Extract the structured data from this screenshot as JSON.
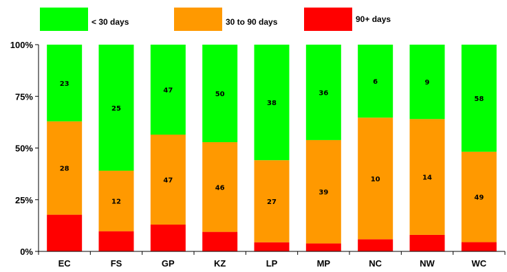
{
  "chart_data": {
    "type": "bar",
    "stacked": true,
    "normalized_100_percent": true,
    "categories": [
      "EC",
      "FS",
      "GP",
      "KZ",
      "LP",
      "MP",
      "NC",
      "NW",
      "WC"
    ],
    "series": [
      {
        "name": "90+ days",
        "color": "#ff0000",
        "values": [
          11,
          4,
          14,
          10,
          3,
          3,
          1,
          2,
          5
        ]
      },
      {
        "name": "30 to 90 days",
        "color": "#ff9900",
        "values": [
          28,
          12,
          47,
          46,
          27,
          39,
          10,
          14,
          49
        ]
      },
      {
        "name": "< 30 days",
        "color": "#00ff00",
        "values": [
          23,
          25,
          47,
          50,
          38,
          36,
          6,
          9,
          58
        ]
      }
    ],
    "labeled_series": [
      "30 to 90 days",
      "< 30 days"
    ],
    "yticks": [
      "0%",
      "25%",
      "50%",
      "75%",
      "100%"
    ],
    "ylim": [
      0,
      100
    ],
    "legend": "top",
    "grid": false
  }
}
